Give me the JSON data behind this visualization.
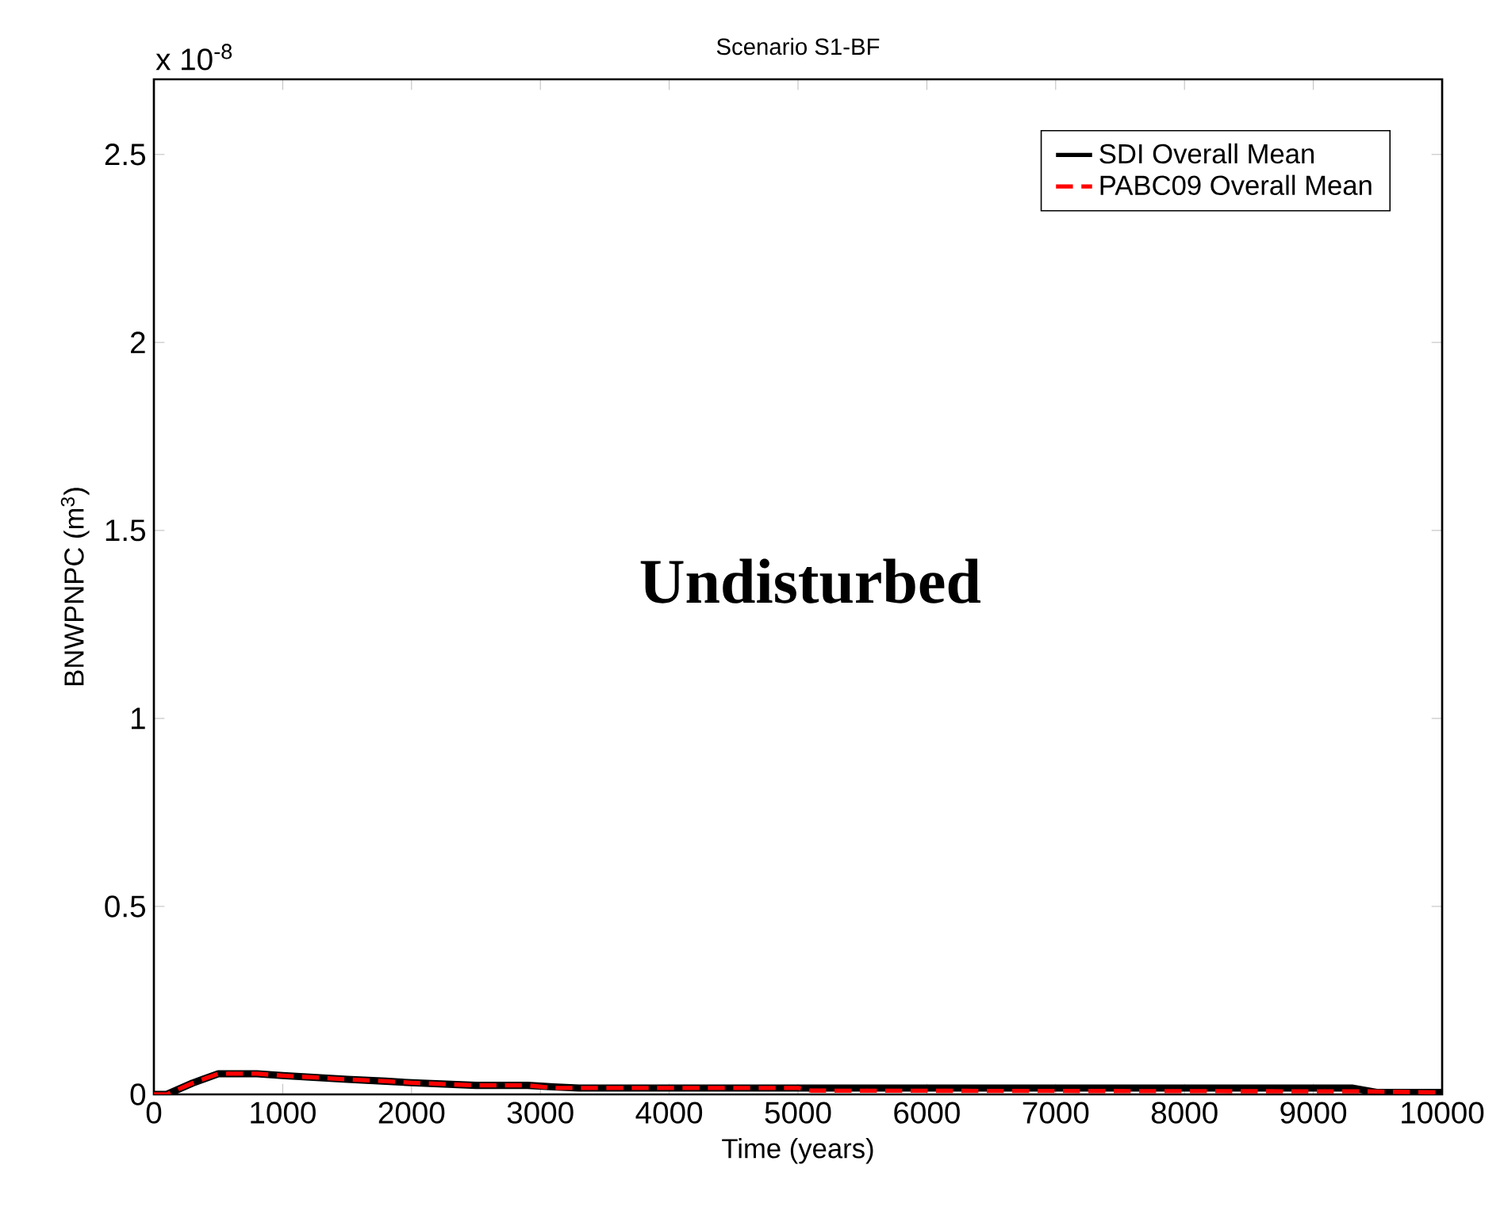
{
  "chart_data": {
    "type": "line",
    "title": "Scenario S1-BF",
    "xlabel": "Time (years)",
    "ylabel": "BNWPNPC (m$^{3}$)",
    "annotations": [
      "x 10$^{-8}$",
      "Undisturbed"
    ],
    "xlim": [
      0,
      10000
    ],
    "ylim": [
      0,
      2.7
    ],
    "xticks": [
      0,
      1000,
      2000,
      3000,
      4000,
      5000,
      6000,
      7000,
      8000,
      9000,
      10000
    ],
    "yticks": [
      0,
      0.5,
      1,
      1.5,
      2,
      2.5
    ],
    "grid": false,
    "legend": "top right",
    "marker": "none",
    "series": [
      {
        "name": "SDI Overall Mean",
        "color": "#000000",
        "line_style": "solid",
        "x": [
          0,
          100,
          300,
          500,
          800,
          1000,
          1500,
          1800,
          2000,
          2500,
          2900,
          3100,
          3300,
          5000,
          9300,
          9500,
          10000
        ],
        "values": [
          0,
          0,
          0.03,
          0.055,
          0.055,
          0.05,
          0.04,
          0.035,
          0.031,
          0.024,
          0.024,
          0.02,
          0.017,
          0.017,
          0.017,
          0.005,
          0.005
        ]
      },
      {
        "name": "PABC09 Overall Mean",
        "color": "#ff0000",
        "line_style": "dashed",
        "x": [
          0,
          100,
          300,
          500,
          800,
          1000,
          1500,
          1800,
          2000,
          2500,
          2900,
          3100,
          5000,
          5100,
          9400,
          10000
        ],
        "values": [
          0,
          0,
          0.03,
          0.055,
          0.055,
          0.05,
          0.04,
          0.035,
          0.031,
          0.024,
          0.024,
          0.017,
          0.017,
          0.01,
          0.008,
          0.005
        ]
      }
    ]
  }
}
